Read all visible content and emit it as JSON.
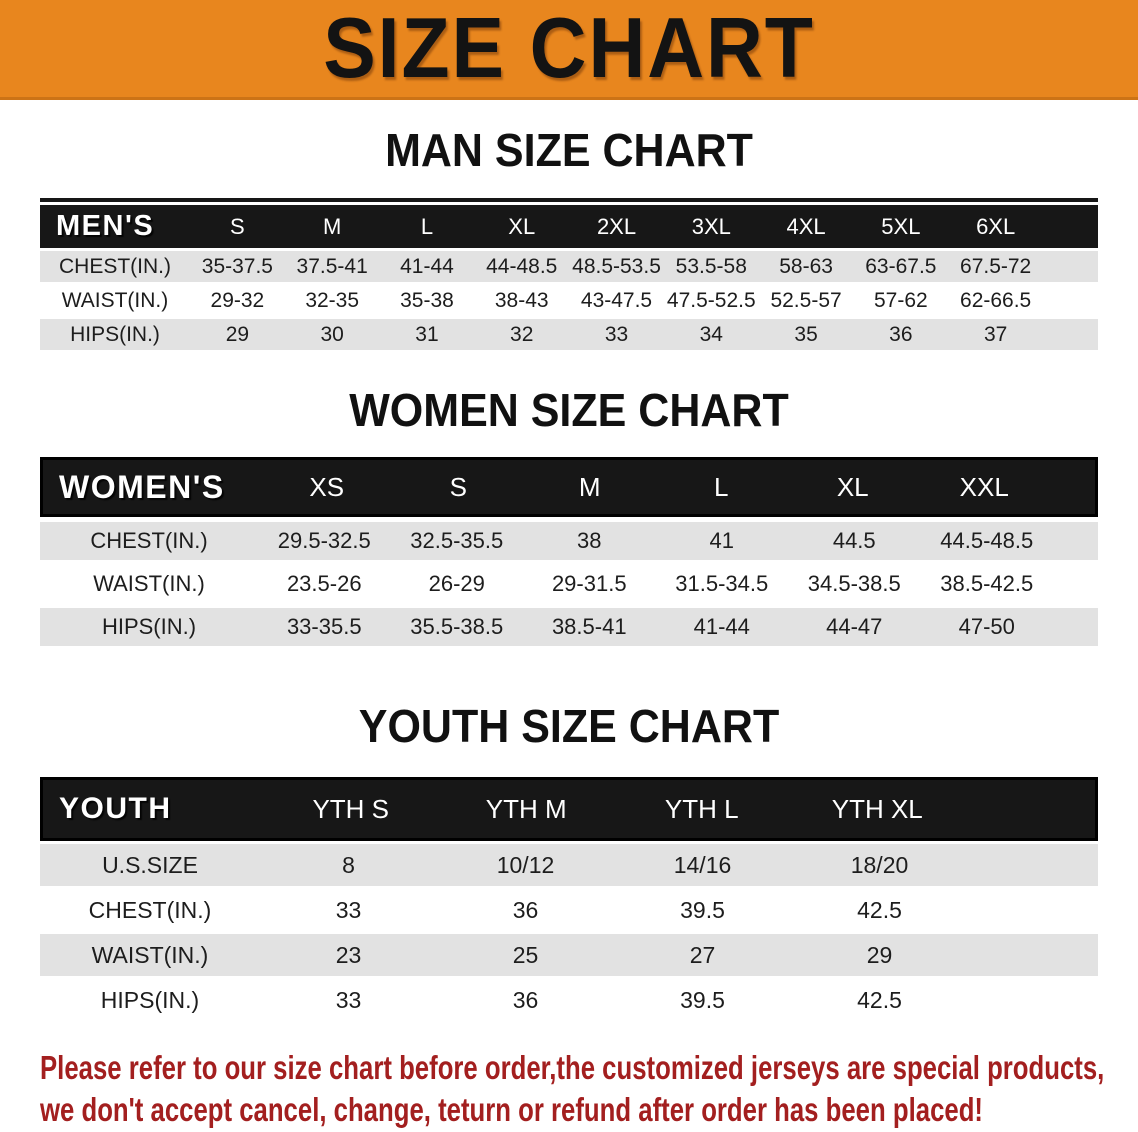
{
  "banner": {
    "title": "SIZE CHART",
    "bg_color": "#E8861E"
  },
  "sections": [
    {
      "id": "men",
      "heading": "MAN SIZE CHART",
      "table": {
        "header_label": "MEN'S",
        "columns": [
          "S",
          "M",
          "L",
          "XL",
          "2XL",
          "3XL",
          "4XL",
          "5XL",
          "6XL"
        ],
        "rows": [
          {
            "label": "CHEST(IN.)",
            "values": [
              "35-37.5",
              "37.5-41",
              "41-44",
              "44-48.5",
              "48.5-53.5",
              "53.5-58",
              "58-63",
              "63-67.5",
              "67.5-72"
            ]
          },
          {
            "label": "WAIST(IN.)",
            "values": [
              "29-32",
              "32-35",
              "35-38",
              "38-43",
              "43-47.5",
              "47.5-52.5",
              "52.5-57",
              "57-62",
              "62-66.5"
            ]
          },
          {
            "label": "HIPS(IN.)",
            "values": [
              "29",
              "30",
              "31",
              "32",
              "33",
              "34",
              "35",
              "36",
              "37"
            ]
          }
        ]
      }
    },
    {
      "id": "women",
      "heading": "WOMEN SIZE CHART",
      "table": {
        "header_label": "WOMEN'S",
        "columns": [
          "XS",
          "S",
          "M",
          "L",
          "XL",
          "XXL"
        ],
        "rows": [
          {
            "label": "CHEST(IN.)",
            "values": [
              "29.5-32.5",
              "32.5-35.5",
              "38",
              "41",
              "44.5",
              "44.5-48.5"
            ]
          },
          {
            "label": "WAIST(IN.)",
            "values": [
              "23.5-26",
              "26-29",
              "29-31.5",
              "31.5-34.5",
              "34.5-38.5",
              "38.5-42.5"
            ]
          },
          {
            "label": "HIPS(IN.)",
            "values": [
              "33-35.5",
              "35.5-38.5",
              "38.5-41",
              "41-44",
              "44-47",
              "47-50"
            ]
          }
        ]
      }
    },
    {
      "id": "youth",
      "heading": "YOUTH SIZE CHART",
      "table": {
        "header_label": "YOUTH",
        "columns": [
          "YTH S",
          "YTH M",
          "YTH L",
          "YTH XL"
        ],
        "rows": [
          {
            "label": "U.S.SIZE",
            "values": [
              "8",
              "10/12",
              "14/16",
              "18/20"
            ]
          },
          {
            "label": "CHEST(IN.)",
            "values": [
              "33",
              "36",
              "39.5",
              "42.5"
            ]
          },
          {
            "label": "WAIST(IN.)",
            "values": [
              "23",
              "25",
              "27",
              "29"
            ]
          },
          {
            "label": "HIPS(IN.)",
            "values": [
              "33",
              "36",
              "39.5",
              "42.5"
            ]
          }
        ]
      }
    }
  ],
  "footer": {
    "line1": "Please refer to our size chart before order,the customized jerseys are special products,",
    "line2": "we don't accept cancel, change, teturn or refund after order has been placed!",
    "text_color": "#A31F1F"
  },
  "colors": {
    "header_bar": "#171717",
    "stripe": "#E2E2E2"
  }
}
